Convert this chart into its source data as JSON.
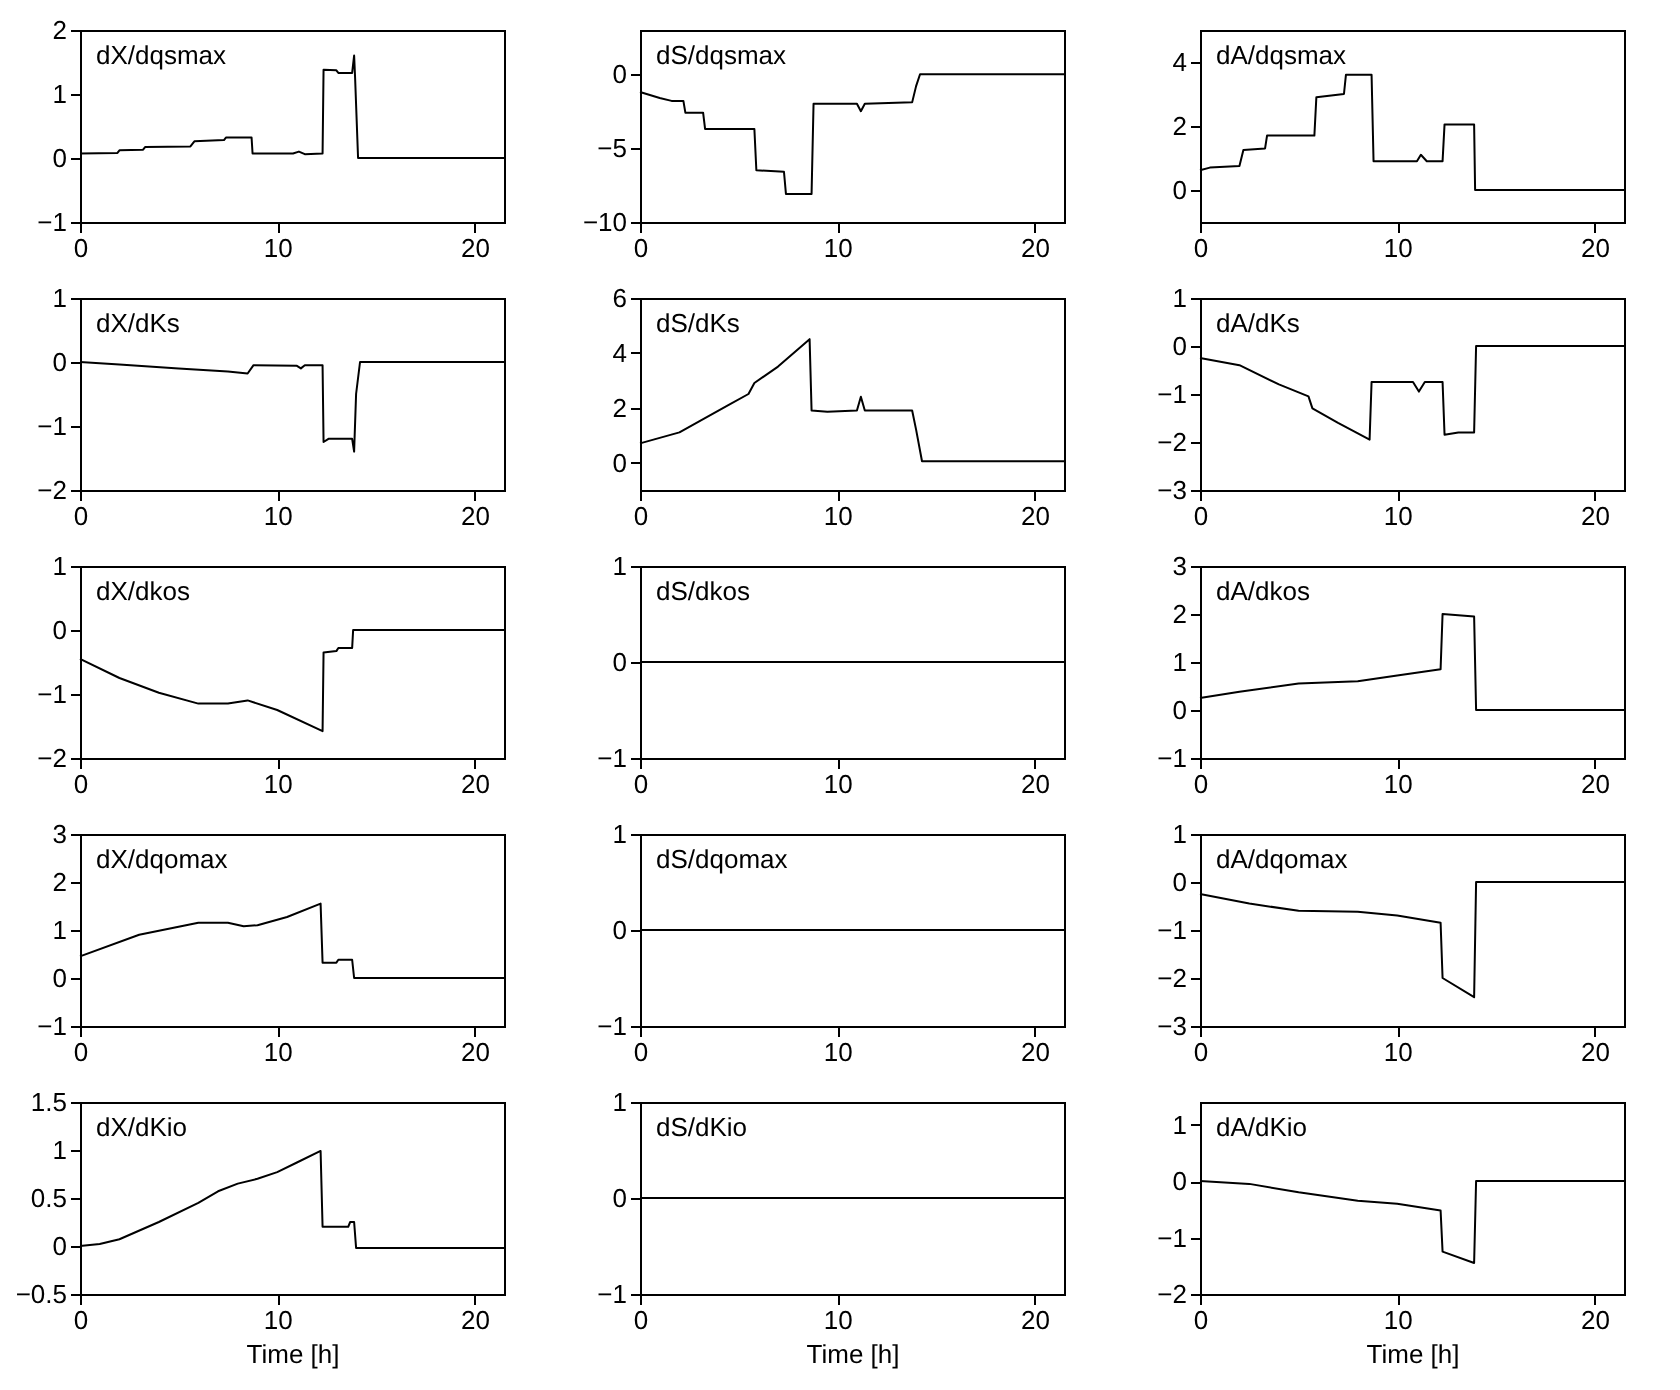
{
  "chart_data": [
    {
      "type": "line",
      "title": "dX/dqsmax",
      "color": "#000000",
      "xlim": [
        0,
        21.5
      ],
      "xticks": [
        0,
        10,
        20
      ],
      "ylim": [
        -1,
        2
      ],
      "yticks": [
        -1,
        0,
        1,
        2
      ],
      "x": [
        0,
        1.9,
        2.0,
        3.2,
        3.3,
        5.6,
        5.8,
        7.3,
        7.4,
        8.7,
        8.75,
        10.8,
        11.1,
        11.4,
        12.3,
        12.35,
        13.0,
        13.1,
        13.8,
        13.9,
        13.95,
        14.1,
        21.5
      ],
      "values": [
        0.07,
        0.08,
        0.12,
        0.13,
        0.17,
        0.18,
        0.26,
        0.28,
        0.32,
        0.32,
        0.07,
        0.07,
        0.1,
        0.06,
        0.07,
        1.38,
        1.37,
        1.33,
        1.33,
        1.6,
        1.25,
        0.0,
        0.0
      ]
    },
    {
      "type": "line",
      "title": "dS/dqsmax",
      "color": "#000000",
      "xlim": [
        0,
        21.5
      ],
      "xticks": [
        0,
        10,
        20
      ],
      "ylim": [
        -10,
        3
      ],
      "yticks": [
        -10,
        -5,
        0
      ],
      "x": [
        0,
        1,
        1.6,
        2.2,
        2.3,
        3.2,
        3.3,
        5.8,
        5.9,
        7.3,
        7.4,
        8.7,
        8.8,
        11,
        11.2,
        11.4,
        13.8,
        14.0,
        14.2,
        21.5
      ],
      "values": [
        -1.2,
        -1.6,
        -1.8,
        -1.8,
        -2.6,
        -2.6,
        -3.7,
        -3.7,
        -6.5,
        -6.6,
        -8.1,
        -8.1,
        -2.0,
        -2.0,
        -2.5,
        -2.0,
        -1.9,
        -0.8,
        0,
        0
      ]
    },
    {
      "type": "line",
      "title": "dA/dqsmax",
      "color": "#000000",
      "xlim": [
        0,
        21.5
      ],
      "xticks": [
        0,
        10,
        20
      ],
      "ylim": [
        -1,
        5
      ],
      "yticks": [
        0,
        2,
        4
      ],
      "x": [
        0,
        0.5,
        2.0,
        2.2,
        3.3,
        3.4,
        5.8,
        5.9,
        7.3,
        7.4,
        8.7,
        8.8,
        11,
        11.2,
        11.5,
        12.3,
        12.4,
        13.9,
        13.95,
        21.5
      ],
      "values": [
        0.62,
        0.7,
        0.75,
        1.25,
        1.3,
        1.7,
        1.7,
        2.9,
        3.0,
        3.6,
        3.6,
        0.9,
        0.9,
        1.1,
        0.9,
        0.9,
        2.05,
        2.05,
        0,
        0
      ]
    },
    {
      "type": "line",
      "title": "dX/dKs",
      "color": "#000000",
      "xlim": [
        0,
        21.5
      ],
      "xticks": [
        0,
        10,
        20
      ],
      "ylim": [
        -2,
        1
      ],
      "yticks": [
        -2,
        -1,
        0,
        1
      ],
      "x": [
        0,
        2,
        5,
        7.5,
        8.5,
        8.8,
        11,
        11.2,
        11.4,
        12.3,
        12.35,
        12.6,
        13.8,
        13.9,
        14.0,
        14.2,
        21.5
      ],
      "values": [
        0,
        -0.04,
        -0.1,
        -0.15,
        -0.18,
        -0.05,
        -0.06,
        -0.1,
        -0.05,
        -0.05,
        -1.25,
        -1.2,
        -1.2,
        -1.4,
        -0.5,
        0,
        0
      ]
    },
    {
      "type": "line",
      "title": "dS/dKs",
      "color": "#000000",
      "xlim": [
        0,
        21.5
      ],
      "xticks": [
        0,
        10,
        20
      ],
      "ylim": [
        -1,
        6
      ],
      "yticks": [
        0,
        2,
        4,
        6
      ],
      "x": [
        0,
        1,
        2,
        3,
        4.5,
        5.5,
        5.8,
        7,
        8.6,
        8.7,
        9.5,
        11,
        11.2,
        11.4,
        13.8,
        14.0,
        14.3,
        21.5
      ],
      "values": [
        0.7,
        0.9,
        1.1,
        1.5,
        2.1,
        2.5,
        2.9,
        3.5,
        4.5,
        1.9,
        1.85,
        1.9,
        2.4,
        1.9,
        1.9,
        1.2,
        0.05,
        0.05
      ]
    },
    {
      "type": "line",
      "title": "dA/dKs",
      "color": "#000000",
      "xlim": [
        0,
        21.5
      ],
      "xticks": [
        0,
        10,
        20
      ],
      "ylim": [
        -3,
        1
      ],
      "yticks": [
        -3,
        -2,
        -1,
        0,
        1
      ],
      "x": [
        0,
        2,
        4,
        5.5,
        5.7,
        7,
        8.6,
        8.7,
        10.8,
        11.1,
        11.4,
        12.3,
        12.4,
        13.1,
        13.9,
        14.0,
        21.5
      ],
      "values": [
        -0.25,
        -0.4,
        -0.8,
        -1.05,
        -1.3,
        -1.6,
        -1.95,
        -0.75,
        -0.75,
        -0.95,
        -0.75,
        -0.75,
        -1.85,
        -1.8,
        -1.8,
        0,
        0
      ]
    },
    {
      "type": "line",
      "title": "dX/dkos",
      "color": "#000000",
      "xlim": [
        0,
        21.5
      ],
      "xticks": [
        0,
        10,
        20
      ],
      "ylim": [
        -2,
        1
      ],
      "yticks": [
        -2,
        -1,
        0,
        1
      ],
      "x": [
        0,
        2,
        4,
        6,
        7.5,
        8.5,
        10,
        12.3,
        12.35,
        13.0,
        13.1,
        13.8,
        13.85,
        21.5
      ],
      "values": [
        -0.45,
        -0.75,
        -0.98,
        -1.15,
        -1.15,
        -1.1,
        -1.25,
        -1.58,
        -0.35,
        -0.33,
        -0.28,
        -0.28,
        0,
        0
      ]
    },
    {
      "type": "line",
      "title": "dS/dkos",
      "color": "#000000",
      "xlim": [
        0,
        21.5
      ],
      "xticks": [
        0,
        10,
        20
      ],
      "ylim": [
        -1,
        1
      ],
      "yticks": [
        -1,
        0,
        1
      ],
      "x": [
        0,
        21.5
      ],
      "values": [
        0,
        0
      ]
    },
    {
      "type": "line",
      "title": "dA/dkos",
      "color": "#000000",
      "xlim": [
        0,
        21.5
      ],
      "xticks": [
        0,
        10,
        20
      ],
      "ylim": [
        -1,
        3
      ],
      "yticks": [
        -1,
        0,
        1,
        2,
        3
      ],
      "x": [
        0,
        2,
        5,
        8,
        10,
        12.2,
        12.3,
        13.9,
        14.0,
        21.5
      ],
      "values": [
        0.25,
        0.38,
        0.55,
        0.6,
        0.72,
        0.85,
        2.0,
        1.95,
        0,
        0
      ]
    },
    {
      "type": "line",
      "title": "dX/dqomax",
      "color": "#000000",
      "xlim": [
        0,
        21.5
      ],
      "xticks": [
        0,
        10,
        20
      ],
      "ylim": [
        -1,
        3
      ],
      "yticks": [
        -1,
        0,
        1,
        2,
        3
      ],
      "x": [
        0,
        3,
        6,
        7.5,
        8.3,
        9,
        10.5,
        12.2,
        12.3,
        13.0,
        13.1,
        13.8,
        13.9,
        21.5
      ],
      "values": [
        0.45,
        0.9,
        1.15,
        1.15,
        1.08,
        1.1,
        1.27,
        1.55,
        0.32,
        0.32,
        0.38,
        0.38,
        0,
        0
      ]
    },
    {
      "type": "line",
      "title": "dS/dqomax",
      "color": "#000000",
      "xlim": [
        0,
        21.5
      ],
      "xticks": [
        0,
        10,
        20
      ],
      "ylim": [
        -1,
        1
      ],
      "yticks": [
        -1,
        0,
        1
      ],
      "x": [
        0,
        21.5
      ],
      "values": [
        0,
        0
      ]
    },
    {
      "type": "line",
      "title": "dA/dqomax",
      "color": "#000000",
      "xlim": [
        0,
        21.5
      ],
      "xticks": [
        0,
        10,
        20
      ],
      "ylim": [
        -3,
        1
      ],
      "yticks": [
        -3,
        -2,
        -1,
        0,
        1
      ],
      "x": [
        0,
        2.5,
        5,
        8,
        10,
        12.2,
        12.3,
        13.9,
        14.0,
        21.5
      ],
      "values": [
        -0.25,
        -0.45,
        -0.6,
        -0.62,
        -0.7,
        -0.85,
        -2.0,
        -2.4,
        0,
        0
      ]
    },
    {
      "type": "line",
      "title": "dX/dKio",
      "color": "#000000",
      "xlim": [
        0,
        21.5
      ],
      "xticks": [
        0,
        10,
        20
      ],
      "ylim": [
        -0.5,
        1.5
      ],
      "yticks": [
        -0.5,
        0,
        0.5,
        1,
        1.5
      ],
      "xlabel": "Time  [h]",
      "x": [
        0,
        1,
        2,
        4,
        6,
        7,
        8,
        9,
        10,
        11,
        12.2,
        12.3,
        13.6,
        13.7,
        13.9,
        14,
        21.5
      ],
      "values": [
        0,
        0.02,
        0.07,
        0.25,
        0.45,
        0.57,
        0.65,
        0.7,
        0.77,
        0.87,
        0.99,
        0.2,
        0.2,
        0.25,
        0.25,
        -0.02,
        -0.02
      ]
    },
    {
      "type": "line",
      "title": "dS/dKio",
      "color": "#000000",
      "xlim": [
        0,
        21.5
      ],
      "xticks": [
        0,
        10,
        20
      ],
      "ylim": [
        -1,
        1
      ],
      "yticks": [
        -1,
        0,
        1
      ],
      "xlabel": "Time  [h]",
      "x": [
        0,
        21.5
      ],
      "values": [
        0,
        0
      ]
    },
    {
      "type": "line",
      "title": "dA/dKio",
      "color": "#000000",
      "xlim": [
        0,
        21.5
      ],
      "xticks": [
        0,
        10,
        20
      ],
      "ylim": [
        -2,
        1.4
      ],
      "yticks": [
        -2,
        -1,
        0,
        1
      ],
      "xlabel": "Time  [h]",
      "x": [
        0,
        2.5,
        5,
        8,
        10,
        12.2,
        12.3,
        13.9,
        14.0,
        21.5
      ],
      "values": [
        0,
        -0.05,
        -0.2,
        -0.35,
        -0.4,
        -0.52,
        -1.25,
        -1.45,
        0,
        0
      ]
    }
  ]
}
